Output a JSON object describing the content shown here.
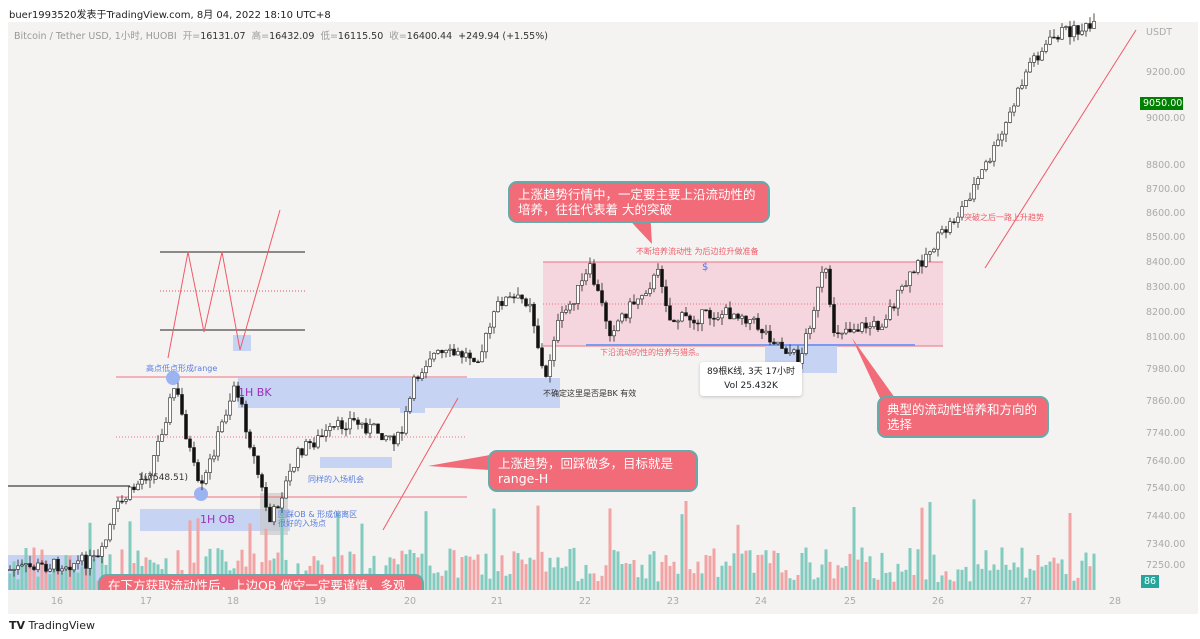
{
  "byline": "buer1993520发表于TradingView.com, 8月 04, 2022 18:10 UTC+8",
  "legend": {
    "symbol": "Bitcoin / Tether USD, 1小时, HUOBI",
    "open_label": "开=",
    "open": "16131.07",
    "high_label": "高=",
    "high": "16432.09",
    "low_label": "低=",
    "low": "16115.50",
    "close_label": "收=",
    "close": "16400.44",
    "change": "+249.94 (+1.55%)"
  },
  "price_axis": {
    "currency": "USDT",
    "labels": [
      "9200.00",
      "9000.00",
      "8800.00",
      "8700.00",
      "8600.00",
      "8500.00",
      "8400.00",
      "8300.00",
      "8200.00",
      "8100.00",
      "7980.00",
      "7860.00",
      "7740.00",
      "7640.00",
      "7540.00",
      "7440.00",
      "7340.00",
      "7250.00"
    ],
    "current_price": "9050.00",
    "current_price_color": "#008000",
    "volume_badge": "86",
    "volume_badge_color": "#26a69a"
  },
  "time_axis": [
    "16",
    "17",
    "18",
    "19",
    "20",
    "21",
    "22",
    "23",
    "24",
    "25",
    "26",
    "27",
    "28"
  ],
  "annotations": {
    "bubble_top": "上涨趋势行情中，一定要主要上沿流动性的培养，往往代表着 大的突破",
    "bubble_mid": "上涨趋势，回踩做多，目标就是range-H",
    "bubble_right": "典型的流动性培养和方向的选择",
    "bubble_bottom": "在下方获取流动性后，上边OB 做空一定要谨慎，多观察反应",
    "range_top_note": "不断培养流动性  为后边拉升做准备",
    "range_bottom_note": "下沿流动的性的培养与猎杀。",
    "breakout_note": "突破之后一路上升趋势",
    "bk_note": "不确定这里是否是BK 有效",
    "range_formed": "高点低点形成range",
    "bk_label": "1H BK",
    "ob_label": "1H OB",
    "entry_same": "同样的入场机会",
    "entry_good": "回踩OB & 形成偏离区\n很好的入场点",
    "fib_label": "1(7548.51)",
    "dollar": "$",
    "measure_bars": "89根K线, 3天 17小时",
    "measure_vol": "Vol 25.432K"
  },
  "colors": {
    "up_volume": "#82cbbf",
    "down_volume": "#f2a3a3",
    "range_fill": "#f5d6de",
    "zone_fill": "#c7d3f3",
    "bubble": "#f26b78"
  },
  "footer": {
    "brand": "TradingView"
  }
}
